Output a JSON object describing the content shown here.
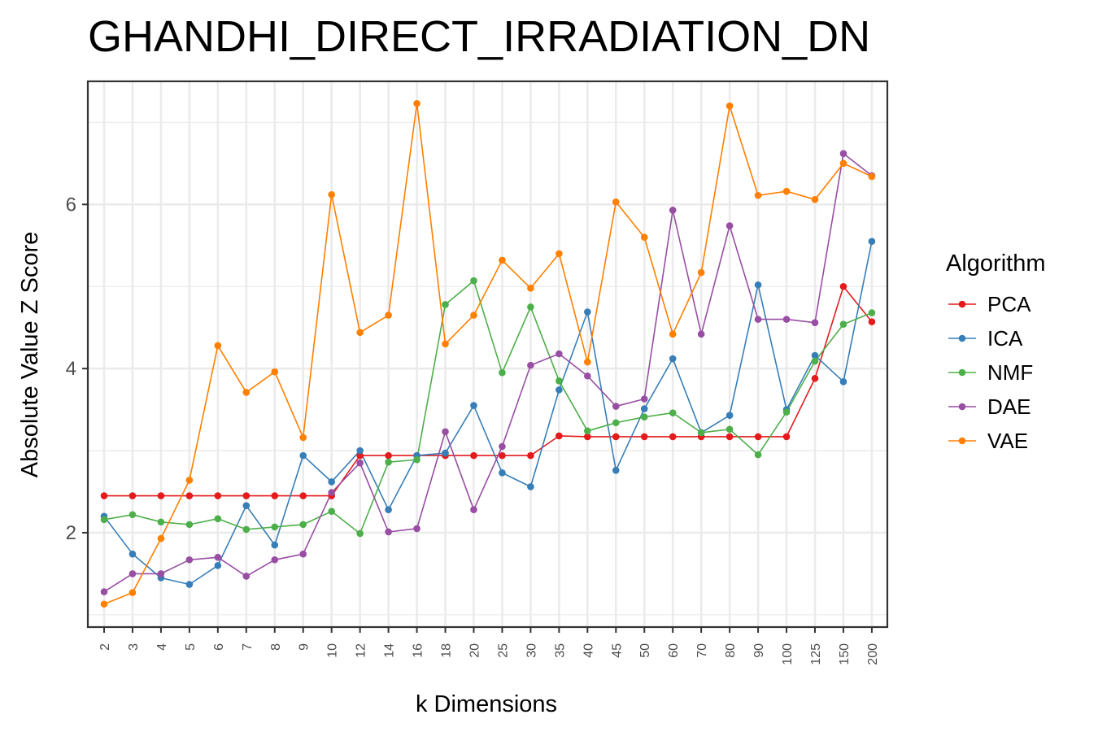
{
  "chart_data": {
    "type": "line",
    "title": "GHANDHI_DIRECT_IRRADIATION_DN",
    "xlabel": "k Dimensions",
    "ylabel": "Absolute Value Z Score",
    "categories": [
      "2",
      "3",
      "4",
      "5",
      "6",
      "7",
      "8",
      "9",
      "10",
      "12",
      "14",
      "16",
      "18",
      "20",
      "25",
      "30",
      "35",
      "40",
      "45",
      "50",
      "60",
      "70",
      "80",
      "90",
      "100",
      "125",
      "150",
      "200"
    ],
    "ylim": [
      0.85,
      7.5
    ],
    "yticks": [
      2,
      4,
      6
    ],
    "grid": true,
    "legend": {
      "title": "Algorithm",
      "position": "right"
    },
    "series": [
      {
        "name": "PCA",
        "color": "#e41a1c",
        "values": [
          2.45,
          2.45,
          2.45,
          2.45,
          2.45,
          2.45,
          2.45,
          2.45,
          2.45,
          2.94,
          2.94,
          2.94,
          2.94,
          2.94,
          2.94,
          2.94,
          3.18,
          3.17,
          3.17,
          3.17,
          3.17,
          3.17,
          3.17,
          3.17,
          3.17,
          3.88,
          5.0,
          4.57
        ]
      },
      {
        "name": "ICA",
        "color": "#377eb8",
        "values": [
          2.2,
          1.74,
          1.45,
          1.37,
          1.6,
          2.33,
          1.85,
          2.94,
          2.62,
          3.0,
          2.28,
          2.94,
          2.97,
          3.55,
          2.73,
          2.56,
          3.74,
          4.69,
          2.76,
          3.51,
          4.12,
          3.22,
          3.43,
          5.02,
          3.5,
          4.16,
          3.84,
          5.55
        ]
      },
      {
        "name": "NMF",
        "color": "#4daf4a",
        "values": [
          2.16,
          2.22,
          2.13,
          2.1,
          2.17,
          2.04,
          2.07,
          2.1,
          2.26,
          1.99,
          2.86,
          2.89,
          4.78,
          5.07,
          3.95,
          4.75,
          3.85,
          3.24,
          3.34,
          3.41,
          3.46,
          3.22,
          3.26,
          2.95,
          3.47,
          4.09,
          4.54,
          4.68
        ]
      },
      {
        "name": "DAE",
        "color": "#984ea3",
        "values": [
          1.28,
          1.5,
          1.5,
          1.67,
          1.7,
          1.47,
          1.67,
          1.74,
          2.49,
          2.85,
          2.01,
          2.05,
          3.23,
          2.28,
          3.05,
          4.04,
          4.18,
          3.91,
          3.54,
          3.63,
          5.93,
          4.42,
          5.74,
          4.6,
          4.6,
          4.56,
          6.62,
          6.35
        ]
      },
      {
        "name": "VAE",
        "color": "#ff7f00",
        "values": [
          1.13,
          1.27,
          1.93,
          2.64,
          4.28,
          3.71,
          3.96,
          3.16,
          6.12,
          4.44,
          4.65,
          7.23,
          4.3,
          4.65,
          5.32,
          4.98,
          5.4,
          4.08,
          6.03,
          5.6,
          4.42,
          5.17,
          7.2,
          6.11,
          6.16,
          6.06,
          6.5,
          6.34
        ]
      }
    ]
  }
}
